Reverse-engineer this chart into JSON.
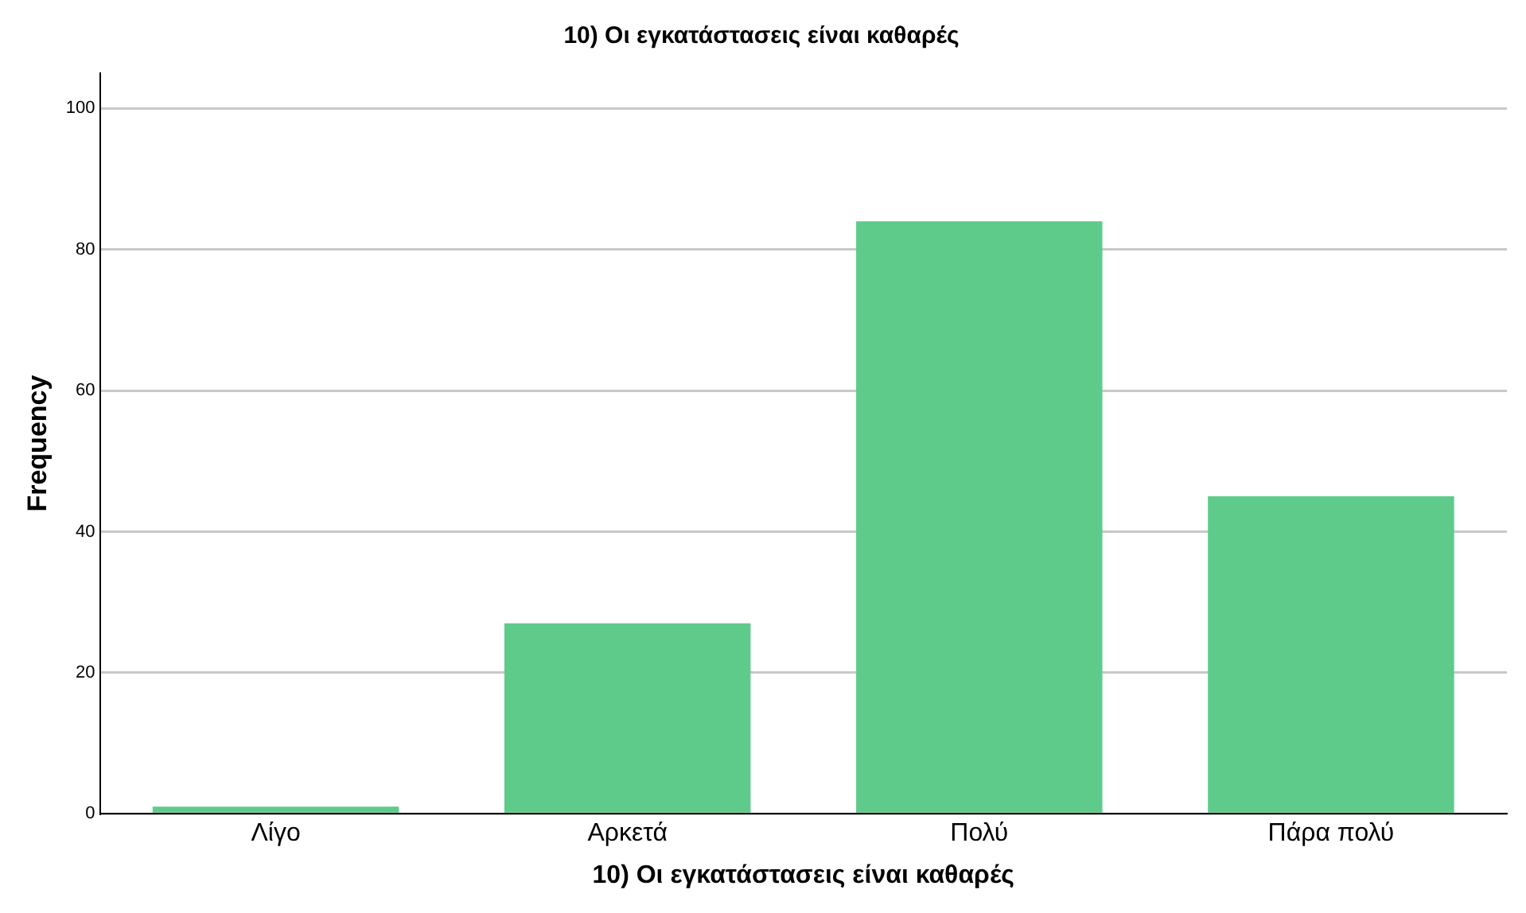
{
  "chart_data": {
    "type": "bar",
    "title": "10) Οι εγκατάστασεις είναι καθαρές",
    "xlabel": "10) Οι εγκατάστασεις είναι καθαρές",
    "ylabel": "Frequency",
    "categories": [
      "Λίγο",
      "Αρκετά",
      "Πολύ",
      "Πάρα πολύ"
    ],
    "values": [
      1,
      27,
      84,
      45
    ],
    "color": "#5ecb8b",
    "ylim": [
      0,
      105
    ],
    "yticks": [
      0,
      20,
      40,
      60,
      80,
      100
    ],
    "grid": "y",
    "legend": false
  }
}
